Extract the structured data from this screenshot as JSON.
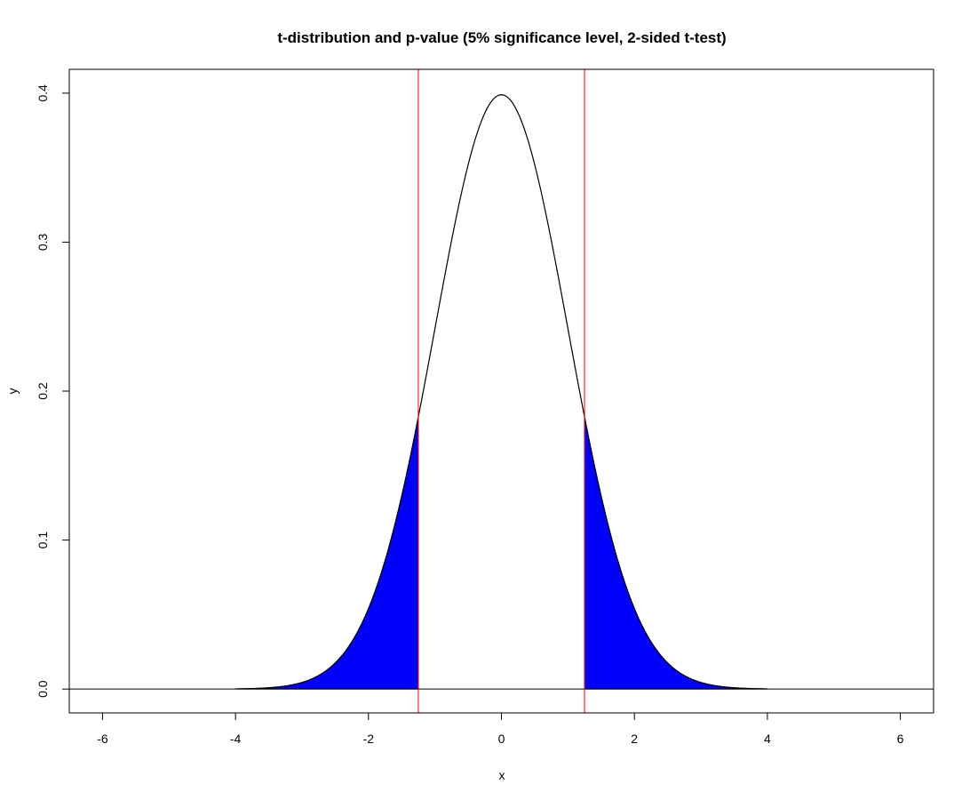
{
  "chart_data": {
    "type": "area",
    "title": "t-distribution and p-value (5% significance level, 2-sided t-test)",
    "xlabel": "x",
    "ylabel": "y",
    "xlim": [
      -6.5,
      6.5
    ],
    "ylim": [
      -0.016,
      0.416
    ],
    "xticks": [
      -6,
      -4,
      -2,
      0,
      2,
      4,
      6
    ],
    "xtick_labels": [
      "-6",
      "-4",
      "-2",
      "0",
      "2",
      "4",
      "6"
    ],
    "yticks": [
      0.0,
      0.1,
      0.2,
      0.3,
      0.4
    ],
    "ytick_labels": [
      "0.0",
      "0.1",
      "0.2",
      "0.3",
      "0.4"
    ],
    "curve": {
      "name": "density",
      "color": "#000000",
      "x": [
        -4.0,
        -3.5,
        -3.0,
        -2.75,
        -2.5,
        -2.25,
        -2.0,
        -1.75,
        -1.5,
        -1.25,
        -1.0,
        -0.75,
        -0.5,
        -0.25,
        0.0,
        0.25,
        0.5,
        0.75,
        1.0,
        1.25,
        1.5,
        1.75,
        2.0,
        2.25,
        2.5,
        2.75,
        3.0,
        3.5,
        4.0
      ],
      "y": [
        0.0001,
        0.0009,
        0.0044,
        0.0091,
        0.0175,
        0.0317,
        0.054,
        0.0863,
        0.1295,
        0.1826,
        0.242,
        0.3011,
        0.3521,
        0.3867,
        0.3989,
        0.3867,
        0.3521,
        0.3011,
        0.242,
        0.1826,
        0.1295,
        0.0863,
        0.054,
        0.0317,
        0.0175,
        0.0091,
        0.0044,
        0.0009,
        0.0001
      ]
    },
    "shaded_regions": [
      {
        "from": -4.0,
        "to": -1.25,
        "color": "#0000ff"
      },
      {
        "from": 1.25,
        "to": 4.0,
        "color": "#0000ff"
      }
    ],
    "vertical_lines": [
      {
        "x": -1.25,
        "color": "#ff0000"
      },
      {
        "x": 1.25,
        "color": "#ff0000"
      }
    ],
    "horizontal_lines": [
      {
        "y": 0.0,
        "color": "#000000"
      }
    ],
    "grid": false,
    "legend": "none"
  }
}
